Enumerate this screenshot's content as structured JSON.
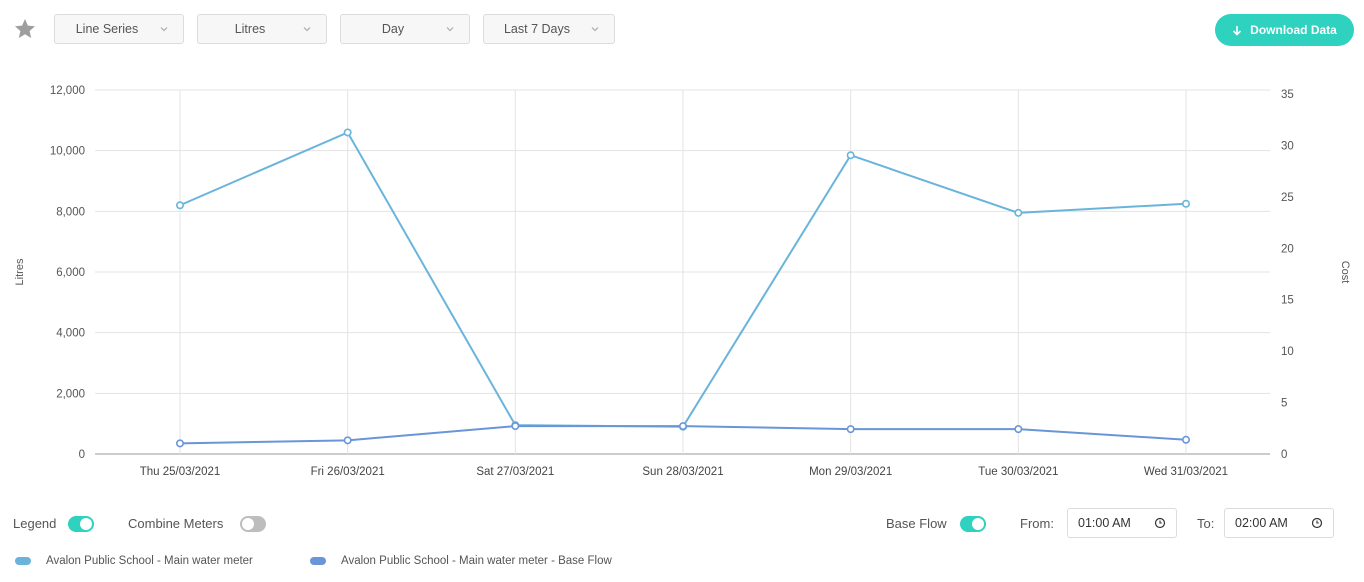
{
  "toolbar": {
    "favorite_icon": "star-icon",
    "dropdowns": [
      {
        "label": "Line Series"
      },
      {
        "label": "Litres"
      },
      {
        "label": "Day"
      },
      {
        "label": "Last 7 Days"
      }
    ],
    "download_label": "Download Data",
    "download_icon": "arrow-down-icon"
  },
  "chart_data": {
    "type": "line",
    "title": "",
    "xlabel": "",
    "ylabel": "Litres",
    "y2label": "Cost",
    "categories": [
      "Thu 25/03/2021",
      "Fri 26/03/2021",
      "Sat 27/03/2021",
      "Sun 28/03/2021",
      "Mon 29/03/2021",
      "Tue 30/03/2021",
      "Wed 31/03/2021"
    ],
    "ylim": [
      0,
      12000
    ],
    "y2lim": [
      0,
      35
    ],
    "yticks": [
      "0",
      "2,000",
      "4,000",
      "6,000",
      "8,000",
      "10,000",
      "12,000"
    ],
    "y2ticks": [
      "0",
      "5",
      "10",
      "15",
      "20",
      "25",
      "30",
      "35"
    ],
    "grid": true,
    "series": [
      {
        "name": "Avalon Public School - Main water meter",
        "color": "#6ab4dc",
        "values": [
          8200,
          10600,
          950,
          900,
          9850,
          7950,
          8250
        ]
      },
      {
        "name": "Avalon Public School - Main water meter - Base Flow",
        "color": "#6a95d8",
        "values": [
          350,
          450,
          920,
          920,
          820,
          820,
          470
        ]
      }
    ]
  },
  "controls": {
    "legend_label": "Legend",
    "legend_on": true,
    "combine_label": "Combine Meters",
    "combine_on": false,
    "base_flow_label": "Base Flow",
    "base_flow_on": true,
    "from_label": "From:",
    "from_value": "01:00 AM",
    "to_label": "To:",
    "to_value": "02:00 AM"
  },
  "colors": {
    "accent": "#2fd1bf",
    "series1": "#6ab4dc",
    "series2": "#6a95d8"
  }
}
